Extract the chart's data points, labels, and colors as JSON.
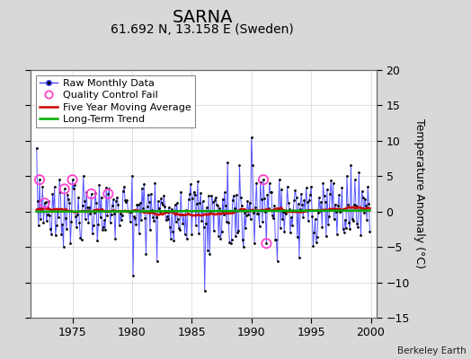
{
  "title": "SARNA",
  "subtitle": "61.692 N, 13.158 E (Sweden)",
  "ylabel": "Temperature Anomaly (°C)",
  "credit": "Berkeley Earth",
  "xlim": [
    1971.5,
    2000.5
  ],
  "ylim": [
    -15,
    20
  ],
  "yticks": [
    -15,
    -10,
    -5,
    0,
    5,
    10,
    15,
    20
  ],
  "xticks": [
    1975,
    1980,
    1985,
    1990,
    1995,
    2000
  ],
  "background_color": "#d8d8d8",
  "plot_bg_color": "#ffffff",
  "raw_line_color": "#4444ff",
  "raw_marker_color": "#000000",
  "moving_avg_color": "#cc0000",
  "trend_color": "#00aa00",
  "qc_fail_color": "#ff44cc",
  "legend_fontsize": 8,
  "title_fontsize": 14,
  "subtitle_fontsize": 10
}
